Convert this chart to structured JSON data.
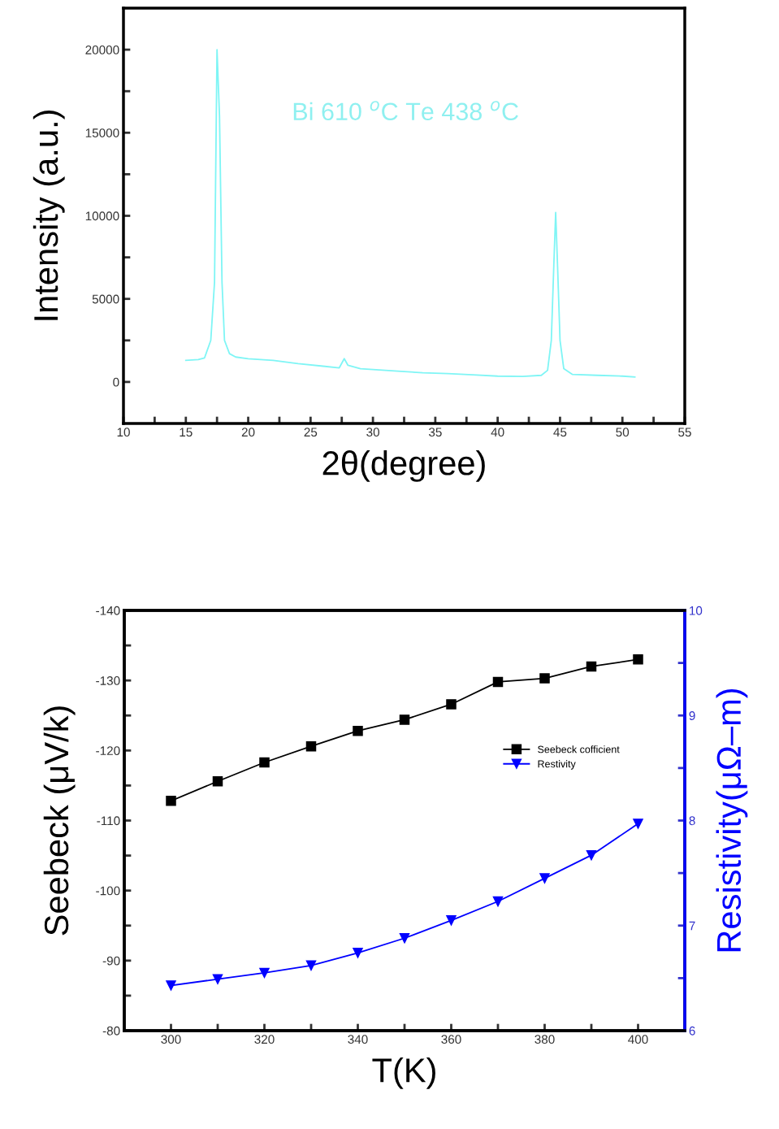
{
  "chart_data": [
    {
      "type": "line",
      "xlabel": "2θ(degree)",
      "ylabel": "Intensity (a.u.)",
      "annotations": [
        "Bi 610 $^{o}$C Te 438 $^{o}$C"
      ],
      "xlim": [
        10,
        55
      ],
      "ylim": [
        -2500,
        22500
      ],
      "xticks": [
        10,
        {
          "value": 12.5,
          "label": null
        },
        15,
        {
          "value": 17.5,
          "label": null
        },
        20,
        {
          "value": 22.5,
          "label": null
        },
        25,
        {
          "value": 27.5,
          "label": null
        },
        30,
        {
          "value": 32.5,
          "label": null
        },
        35,
        {
          "value": 37.5,
          "label": null
        },
        40,
        {
          "value": 42.5,
          "label": null
        },
        45,
        {
          "value": 47.5,
          "label": null
        },
        50,
        {
          "value": 52.5,
          "label": null
        },
        55
      ],
      "yticks": [
        0,
        {
          "value": 2500,
          "label": null
        },
        5000,
        {
          "value": 7500,
          "label": null
        },
        10000,
        {
          "value": 12500,
          "label": null
        },
        15000,
        {
          "value": 17500,
          "label": null
        },
        20000
      ],
      "grid": false,
      "legend": false,
      "marker": "none",
      "line_style": "solid",
      "series": [
        {
          "color": "#7ff5f5",
          "x": [
            15,
            16,
            16.5,
            17,
            17.3,
            17.5,
            17.7,
            17.9,
            18.1,
            18.5,
            19,
            20,
            22,
            24,
            26,
            27.3,
            27.7,
            28,
            29,
            30,
            32,
            34,
            36,
            38,
            40,
            42,
            43.5,
            44,
            44.3,
            44.5,
            44.65,
            44.8,
            45,
            45.3,
            46,
            48,
            50,
            51
          ],
          "values": [
            1300,
            1350,
            1450,
            2500,
            6000,
            20000,
            16000,
            6000,
            2500,
            1700,
            1500,
            1400,
            1300,
            1100,
            950,
            850,
            1400,
            1000,
            800,
            750,
            650,
            550,
            500,
            430,
            350,
            330,
            400,
            700,
            2500,
            7000,
            10200,
            7000,
            2500,
            800,
            450,
            400,
            350,
            300
          ]
        }
      ]
    },
    {
      "type": "line",
      "xlabel": "T(K)",
      "ylabel": "Seebeck (μV/k)",
      "y2label": "Resistivity(μΩ–m)",
      "xlim": [
        290,
        410
      ],
      "ylim": [
        -80,
        -140
      ],
      "y2lim": [
        6,
        10
      ],
      "xticks": [
        300,
        {
          "value": 310,
          "label": null
        },
        320,
        {
          "value": 330,
          "label": null
        },
        340,
        {
          "value": 350,
          "label": null
        },
        360,
        {
          "value": 370,
          "label": null
        },
        380,
        {
          "value": 390,
          "label": null
        },
        400
      ],
      "yticks": [
        -80,
        {
          "value": -85,
          "label": null
        },
        -90,
        {
          "value": -95,
          "label": null
        },
        -100,
        {
          "value": -105,
          "label": null
        },
        -110,
        {
          "value": -115,
          "label": null
        },
        -120,
        {
          "value": -125,
          "label": null
        },
        -130,
        {
          "value": -135,
          "label": null
        },
        -140
      ],
      "y2ticks": [
        6,
        {
          "value": 6.5,
          "label": null
        },
        7,
        {
          "value": 7.5,
          "label": null
        },
        8,
        {
          "value": 8.5,
          "label": null
        },
        9,
        {
          "value": 9.5,
          "label": null
        },
        10
      ],
      "grid": false,
      "legend": "right",
      "line_style": "solid",
      "x": [
        300,
        310,
        320,
        330,
        340,
        350,
        360,
        370,
        380,
        390,
        400
      ],
      "series": [
        {
          "name": "Seebeck cofficient",
          "color": "#000000",
          "marker": "square",
          "values": [
            -112.8,
            -115.6,
            -118.3,
            -120.6,
            -122.8,
            -124.4,
            -126.6,
            -129.8,
            -130.3,
            -132.0,
            -133.0
          ]
        },
        {
          "name": "Restivity",
          "color": "#0000ff",
          "marker": "triangle",
          "axis": "y2",
          "values": [
            6.43,
            6.49,
            6.55,
            6.62,
            6.74,
            6.88,
            7.05,
            7.23,
            7.45,
            7.67,
            7.97
          ]
        }
      ]
    }
  ]
}
